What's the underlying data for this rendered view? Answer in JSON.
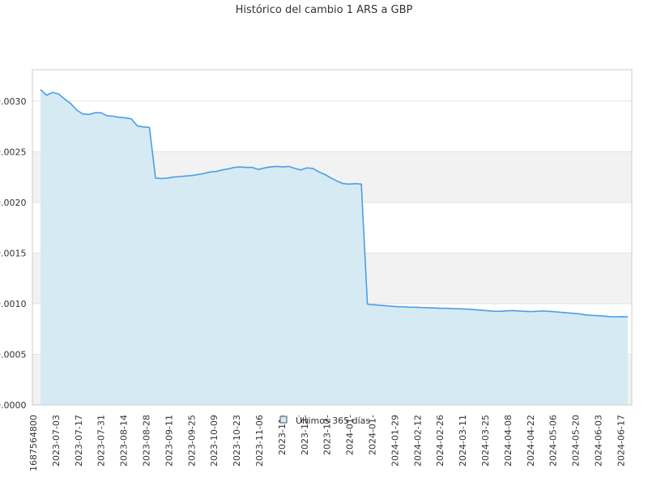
{
  "chart_data": {
    "type": "area",
    "title": "Histórico del cambio 1 ARS a GBP",
    "xlabel": "",
    "ylabel": "",
    "ylim": [
      0,
      0.0034
    ],
    "y_ticks": [
      "0.0000",
      "0.0005",
      "0.0010",
      "0.0015",
      "0.0020",
      "0.0025",
      "0.0030"
    ],
    "x_ticks": [
      "1687564800",
      "2023-07-03",
      "2023-07-17",
      "2023-07-31",
      "2023-08-14",
      "2023-08-28",
      "2023-09-11",
      "2023-09-25",
      "2023-10-09",
      "2023-10-23",
      "2023-11-06",
      "2023-11-",
      "2023-12-",
      "2023-12-",
      "2024-01-",
      "2024-01-",
      "2024-01-29",
      "2024-02-12",
      "2024-02-26",
      "2024-03-11",
      "2024-03-25",
      "2024-04-08",
      "2024-04-22",
      "2024-05-06",
      "2024-05-20",
      "2024-06-03",
      "2024-06-17"
    ],
    "grid": true,
    "legend_position": "bottom-center",
    "series": [
      {
        "name": "Últimos 365 días",
        "color": "#4a9fe6",
        "fill": "#d4e9f2",
        "x_start": "2023-06-24",
        "x_end": "2024-06-22",
        "values": [
          0.003115,
          0.003058,
          0.003085,
          0.00307,
          0.00302,
          0.002975,
          0.00291,
          0.002873,
          0.002868,
          0.002885,
          0.002885,
          0.002855,
          0.00285,
          0.00284,
          0.002835,
          0.002825,
          0.002755,
          0.002745,
          0.00274,
          0.00224,
          0.002235,
          0.00224,
          0.00225,
          0.002255,
          0.00226,
          0.002265,
          0.002275,
          0.002285,
          0.0023,
          0.002305,
          0.00232,
          0.00233,
          0.002345,
          0.00235,
          0.002345,
          0.002345,
          0.002325,
          0.00234,
          0.00235,
          0.002355,
          0.00235,
          0.002355,
          0.002335,
          0.00232,
          0.00234,
          0.002335,
          0.0023,
          0.002275,
          0.00224,
          0.00221,
          0.002185,
          0.00218,
          0.002185,
          0.00218,
          0.000995,
          0.00099,
          0.000985,
          0.00098,
          0.000975,
          0.00097,
          0.00097,
          0.000965,
          0.000965,
          0.000962,
          0.00096,
          0.000958,
          0.000955,
          0.000955,
          0.000952,
          0.00095,
          0.000948,
          0.000945,
          0.00094,
          0.000935,
          0.00093,
          0.000925,
          0.000925,
          0.00093,
          0.000932,
          0.000928,
          0.000925,
          0.000922,
          0.000925,
          0.000928,
          0.000925,
          0.00092,
          0.000915,
          0.00091,
          0.000905,
          0.0009,
          0.00089,
          0.000885,
          0.000882,
          0.000878,
          0.000872,
          0.00087,
          0.000872,
          0.00087
        ]
      }
    ]
  }
}
